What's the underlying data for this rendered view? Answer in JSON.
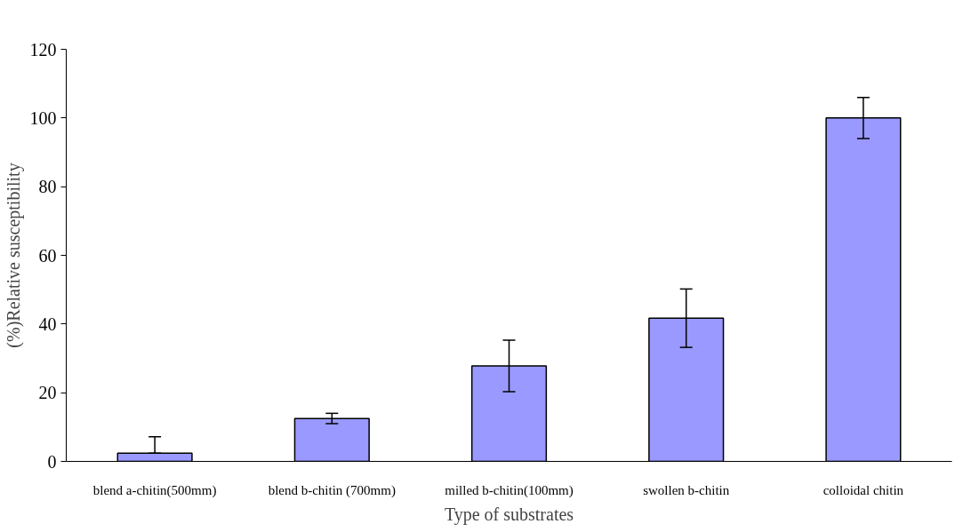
{
  "chart_data": {
    "type": "bar",
    "xlabel": "Type of substrates",
    "ylabel": "(%)Relative susceptibility",
    "categories": [
      "blend a-chitin(500mm)",
      "blend b-chitin (700mm)",
      "milled b-chitin(100mm)",
      "swollen b-chitin",
      "colloidal chitin"
    ],
    "values": [
      2.4,
      12.5,
      27.8,
      41.7,
      100
    ],
    "errors": [
      [
        2.4,
        7.2
      ],
      1.5,
      7.5,
      8.5,
      6
    ],
    "color": "#9999ff",
    "ylim": [
      0,
      120
    ],
    "yticks": [
      0,
      20,
      40,
      60,
      80,
      100,
      120
    ],
    "grid": false
  }
}
